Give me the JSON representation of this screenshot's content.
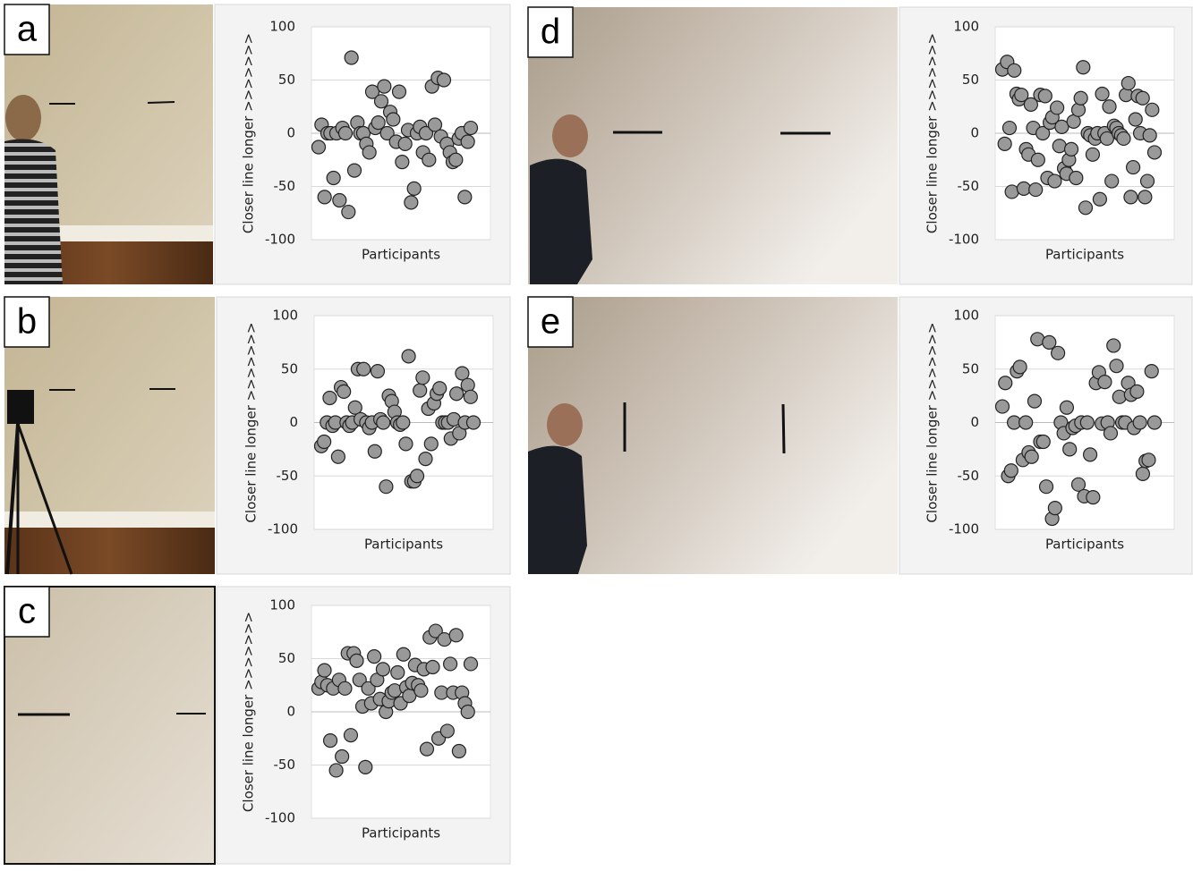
{
  "chart_data": [
    {
      "type": "scatter",
      "panel": "a",
      "ylabel": "Closer line longer >>>>>>>",
      "xlabel": "Participants",
      "ylim": [
        -100,
        100
      ],
      "yticks": [
        -100,
        -50,
        0,
        50,
        100
      ],
      "grid": true,
      "color": "#999999",
      "values": [
        -13,
        8,
        -60,
        0,
        0,
        -42,
        0,
        -63,
        5,
        0,
        -74,
        71,
        -35,
        10,
        0,
        0,
        -10,
        -18,
        39,
        5,
        10,
        30,
        44,
        0,
        20,
        13,
        -8,
        39,
        -27,
        -10,
        3,
        -65,
        -52,
        0,
        6,
        -18,
        0,
        -25,
        44,
        8,
        52,
        -3,
        50,
        -10,
        -18,
        -27,
        -25,
        -5,
        0,
        -60,
        -8,
        5
      ]
    },
    {
      "type": "scatter",
      "panel": "b",
      "ylabel": "Closer line longer >>>>>>>",
      "xlabel": "Participants",
      "ylim": [
        -100,
        100
      ],
      "yticks": [
        -100,
        -50,
        0,
        50,
        100
      ],
      "grid": true,
      "color": "#999999",
      "values": [
        -22,
        -18,
        0,
        23,
        -3,
        0,
        -32,
        33,
        29,
        0,
        -3,
        0,
        14,
        50,
        3,
        50,
        0,
        -5,
        0,
        -27,
        48,
        3,
        0,
        -60,
        25,
        20,
        10,
        0,
        -2,
        0,
        -20,
        62,
        -55,
        -55,
        -50,
        30,
        42,
        -34,
        13,
        -20,
        18,
        27,
        32,
        0,
        0,
        0,
        -15,
        3,
        27,
        -10,
        46,
        0,
        35,
        24,
        0
      ]
    },
    {
      "type": "scatter",
      "panel": "c",
      "ylabel": "Closer line longer >>>>>>>",
      "xlabel": "Participants",
      "ylim": [
        -100,
        100
      ],
      "yticks": [
        -100,
        -50,
        0,
        50,
        100
      ],
      "grid": true,
      "color": "#999999",
      "values": [
        22,
        28,
        39,
        25,
        -27,
        22,
        -55,
        30,
        -42,
        22,
        55,
        -22,
        55,
        48,
        30,
        5,
        -52,
        22,
        8,
        52,
        30,
        12,
        40,
        0,
        10,
        18,
        20,
        37,
        8,
        54,
        23,
        15,
        27,
        44,
        25,
        20,
        40,
        -35,
        70,
        42,
        76,
        -25,
        18,
        68,
        -18,
        45,
        18,
        72,
        -37,
        18,
        8,
        0,
        45
      ]
    },
    {
      "type": "scatter",
      "panel": "d",
      "ylabel": "Closer line longer >>>>>>>",
      "xlabel": "Participants",
      "ylim": [
        -100,
        100
      ],
      "yticks": [
        -100,
        -50,
        0,
        50,
        100
      ],
      "grid": true,
      "color": "#999999",
      "values": [
        60,
        -10,
        67,
        5,
        -55,
        59,
        37,
        32,
        36,
        -52,
        -15,
        -20,
        27,
        5,
        -53,
        -25,
        36,
        0,
        35,
        -42,
        10,
        15,
        -45,
        24,
        -12,
        6,
        -33,
        -38,
        -25,
        -15,
        11,
        -42,
        22,
        33,
        62,
        -70,
        0,
        -2,
        -20,
        -5,
        0,
        -62,
        37,
        0,
        -5,
        25,
        -45,
        7,
        5,
        0,
        -2,
        -5,
        36,
        47,
        -60,
        -32,
        13,
        35,
        0,
        33,
        -60,
        -45,
        -2,
        22,
        -18
      ]
    },
    {
      "type": "scatter",
      "panel": "e",
      "ylabel": "Closer line longer >>>>>>>",
      "xlabel": "Participants",
      "ylim": [
        -100,
        100
      ],
      "yticks": [
        -100,
        -50,
        0,
        50,
        100
      ],
      "grid": true,
      "color": "#999999",
      "values": [
        15,
        37,
        -50,
        -45,
        0,
        48,
        52,
        -35,
        0,
        -28,
        -32,
        20,
        78,
        -18,
        -18,
        -60,
        75,
        -90,
        -80,
        65,
        0,
        -10,
        14,
        -25,
        -5,
        -3,
        -58,
        0,
        -69,
        0,
        -30,
        -70,
        37,
        47,
        -1,
        38,
        0,
        -10,
        72,
        53,
        24,
        0,
        0,
        37,
        26,
        -5,
        29,
        0,
        -48,
        -36,
        -35,
        48,
        0
      ]
    }
  ]
}
